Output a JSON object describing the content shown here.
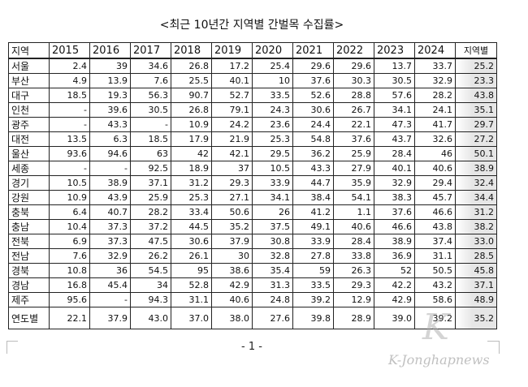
{
  "header": {
    "title": "<최근 10년간 지역별 간벌목 수집률>"
  },
  "table": {
    "columns": [
      "지역",
      "2015",
      "2016",
      "2017",
      "2018",
      "2019",
      "2020",
      "2021",
      "2022",
      "2023",
      "2024",
      "지역별"
    ],
    "rows": [
      [
        "서울",
        "2.4",
        "39",
        "34.6",
        "26.8",
        "17.2",
        "25.4",
        "29.6",
        "29.6",
        "13.7",
        "33.7",
        "25.2"
      ],
      [
        "부산",
        "4.9",
        "13.9",
        "7.6",
        "25.5",
        "40.1",
        "10",
        "37.6",
        "30.3",
        "30.5",
        "32.9",
        "23.3"
      ],
      [
        "대구",
        "18.5",
        "19.3",
        "56.3",
        "90.7",
        "52.7",
        "33.5",
        "52.6",
        "28.8",
        "57.6",
        "28.2",
        "43.8"
      ],
      [
        "인천",
        "-",
        "39.6",
        "30.5",
        "26.8",
        "79.1",
        "24.3",
        "30.6",
        "26.7",
        "34.1",
        "24.1",
        "35.1"
      ],
      [
        "광주",
        "-",
        "43.3",
        "-",
        "10.9",
        "24.2",
        "23.6",
        "24.4",
        "22.1",
        "47.3",
        "41.7",
        "29.7"
      ],
      [
        "대전",
        "13.5",
        "6.3",
        "18.5",
        "17.9",
        "21.9",
        "25.3",
        "54.8",
        "37.6",
        "43.7",
        "32.6",
        "27.2"
      ],
      [
        "울산",
        "93.6",
        "94.6",
        "63",
        "42",
        "42.1",
        "29.5",
        "36.2",
        "25.9",
        "28.4",
        "46",
        "50.1"
      ],
      [
        "세종",
        "-",
        "-",
        "92.5",
        "18.9",
        "37",
        "10.5",
        "43.3",
        "27.9",
        "40.1",
        "40.6",
        "38.9"
      ],
      [
        "경기",
        "10.5",
        "38.9",
        "37.1",
        "31.2",
        "29.3",
        "33.9",
        "44.7",
        "35.9",
        "32.9",
        "29.4",
        "32.4"
      ],
      [
        "강원",
        "10.9",
        "43.9",
        "25.9",
        "25.3",
        "27.1",
        "34.1",
        "38.4",
        "54.1",
        "38.3",
        "45.7",
        "34.4"
      ],
      [
        "충북",
        "6.4",
        "40.7",
        "28.2",
        "33.4",
        "50.6",
        "26",
        "41.2",
        "1.1",
        "37.6",
        "46.6",
        "31.2"
      ],
      [
        "충남",
        "10.4",
        "37.3",
        "37.2",
        "44.5",
        "35.2",
        "37.5",
        "49.1",
        "40.6",
        "46.6",
        "43.8",
        "38.2"
      ],
      [
        "전북",
        "6.9",
        "37.3",
        "47.5",
        "30.6",
        "37.9",
        "30.8",
        "33.9",
        "28.4",
        "38.9",
        "37.4",
        "33.0"
      ],
      [
        "전남",
        "7.6",
        "32.9",
        "26.2",
        "26.1",
        "30",
        "32.8",
        "27.8",
        "33.8",
        "36.9",
        "31.1",
        "28.5"
      ],
      [
        "경북",
        "10.8",
        "36",
        "54.5",
        "95",
        "38.6",
        "35.4",
        "59",
        "26.3",
        "52",
        "50.5",
        "45.8"
      ],
      [
        "경남",
        "16.8",
        "45.4",
        "34",
        "52.8",
        "42.9",
        "31.3",
        "33.5",
        "29.3",
        "42.2",
        "43.2",
        "37.1"
      ],
      [
        "제주",
        "95.6",
        "-",
        "94.3",
        "31.1",
        "40.6",
        "24.8",
        "39.2",
        "12.9",
        "42.9",
        "58.6",
        "48.9"
      ],
      [
        "연도별",
        "22.1",
        "37.9",
        "43.0",
        "37.0",
        "38.0",
        "27.6",
        "39.8",
        "28.9",
        "39.0",
        "39.2",
        "35.2"
      ]
    ]
  },
  "footer": {
    "page": "- 1 -"
  },
  "watermark": "K-Jonghapnews"
}
